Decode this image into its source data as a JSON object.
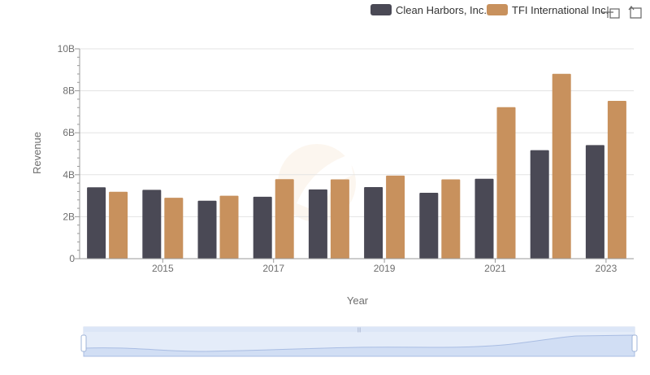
{
  "chart_data": {
    "type": "bar",
    "title": "",
    "xlabel": "Year",
    "ylabel": "Revenue",
    "categories": [
      "2014",
      "2015",
      "2016",
      "2017",
      "2018",
      "2019",
      "2020",
      "2021",
      "2022",
      "2023"
    ],
    "x_tick_labels": [
      "2015",
      "2017",
      "2019",
      "2021",
      "2023"
    ],
    "y_tick_labels": [
      "0",
      "2B",
      "4B",
      "6B",
      "8B",
      "10B"
    ],
    "ylim": [
      0,
      10000000000
    ],
    "grid": true,
    "legend_position": "top-right",
    "series": [
      {
        "name": "Clean Harbors, Inc.",
        "color": "#4a4955",
        "values": [
          3400000000,
          3280000000,
          2760000000,
          2950000000,
          3300000000,
          3410000000,
          3140000000,
          3810000000,
          5170000000,
          5410000000
        ]
      },
      {
        "name": "TFI International Inc.",
        "color": "#c8915d",
        "values": [
          3190000000,
          2900000000,
          3000000000,
          3790000000,
          3780000000,
          3960000000,
          3780000000,
          7220000000,
          8810000000,
          7520000000
        ]
      }
    ]
  },
  "toolbox": {
    "zoom_icon": "zoom-select-icon",
    "restore_icon": "restore-icon"
  },
  "slider": {
    "handle_color": "#9fb4d8",
    "fill_color": "#d9e4f7"
  }
}
